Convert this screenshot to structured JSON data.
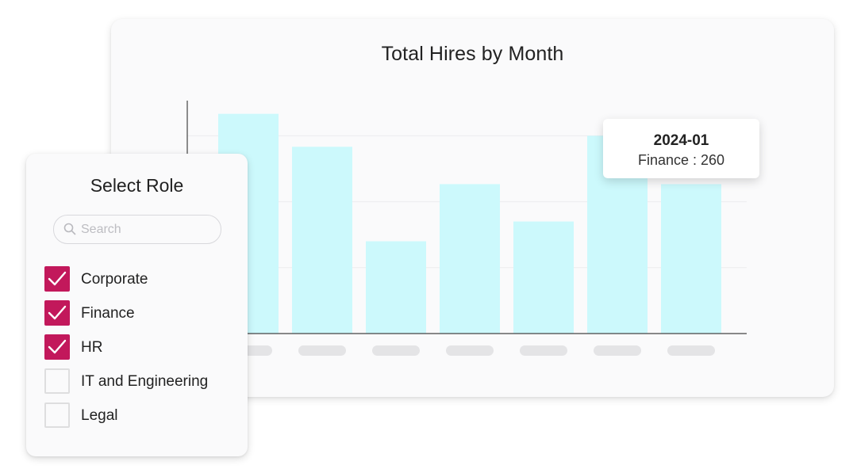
{
  "chart": {
    "title": "Total Hires by Month",
    "tooltip": {
      "date": "2024-01",
      "text": "Finance : 260"
    }
  },
  "chart_data": {
    "type": "bar",
    "title": "Total Hires by Month",
    "categories": [
      "",
      "",
      "",
      "",
      "",
      "",
      ""
    ],
    "values": [
      100,
      85,
      42,
      68,
      51,
      90,
      68
    ],
    "ylim": [
      0,
      106
    ],
    "grid": true,
    "colors": {
      "bar": "#ccf9fc",
      "grid": "#ececee",
      "axis": "#444444",
      "tick_placeholder": "#e4e4e6"
    }
  },
  "filter": {
    "title": "Select Role",
    "search": {
      "placeholder": "Search",
      "value": ""
    },
    "roles": [
      {
        "label": "Corporate",
        "checked": true
      },
      {
        "label": "Finance",
        "checked": true
      },
      {
        "label": "HR",
        "checked": true
      },
      {
        "label": "IT and Engineering",
        "checked": false
      },
      {
        "label": "Legal",
        "checked": false
      }
    ],
    "accent_color": "#c2185b"
  }
}
